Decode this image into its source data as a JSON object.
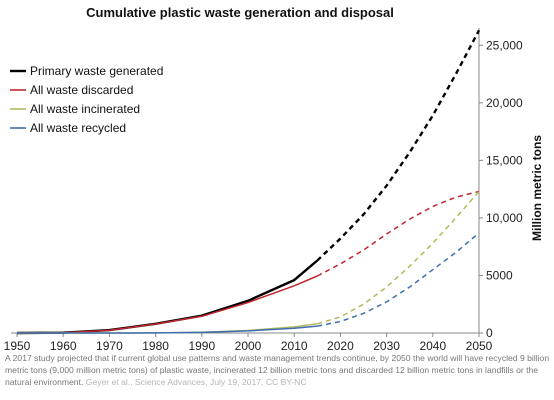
{
  "chart_data": {
    "type": "line",
    "title": "Cumulative plastic waste generation and disposal",
    "xlabel": "",
    "ylabel": "Million metric tons",
    "xlim": [
      1950,
      2050
    ],
    "ylim": [
      0,
      26500
    ],
    "x_ticks": [
      1950,
      1960,
      1970,
      1980,
      1990,
      2000,
      2010,
      2020,
      2030,
      2040,
      2050
    ],
    "y_ticks": [
      {
        "value": 0,
        "label": "0"
      },
      {
        "value": 5000,
        "label": "5000"
      },
      {
        "value": 10000,
        "label": "10,000"
      },
      {
        "value": 15000,
        "label": "15,000"
      },
      {
        "value": 20000,
        "label": "20,000"
      },
      {
        "value": 25000,
        "label": "25,000"
      }
    ],
    "y_axis_position": "right",
    "grid": false,
    "legend_position": "top-left",
    "historical_until": 2015,
    "series": [
      {
        "name": "Primary waste generated",
        "color": "#000000",
        "x": [
          1950,
          1960,
          1970,
          1980,
          1990,
          2000,
          2010,
          2015,
          2020,
          2025,
          2030,
          2035,
          2040,
          2045,
          2050
        ],
        "y": [
          0,
          30,
          250,
          800,
          1500,
          2800,
          4600,
          6300,
          8200,
          10300,
          12800,
          15700,
          18900,
          22500,
          26300
        ]
      },
      {
        "name": "All waste discarded",
        "color": "#c0272d",
        "x": [
          1950,
          1960,
          1970,
          1980,
          1990,
          2000,
          2010,
          2015,
          2020,
          2025,
          2030,
          2035,
          2040,
          2045,
          2050
        ],
        "y": [
          0,
          30,
          240,
          780,
          1450,
          2650,
          4100,
          4950,
          6000,
          7200,
          8600,
          9900,
          11000,
          11800,
          12300
        ]
      },
      {
        "name": "All waste incinerated",
        "color": "#b5b85a",
        "x": [
          1950,
          1960,
          1970,
          1980,
          1990,
          2000,
          2010,
          2015,
          2020,
          2025,
          2030,
          2035,
          2040,
          2045,
          2050
        ],
        "y": [
          0,
          0,
          0,
          10,
          60,
          220,
          530,
          800,
          1400,
          2500,
          4000,
          5800,
          7800,
          10000,
          12300
        ]
      },
      {
        "name": "All waste recycled",
        "color": "#3e6fb0",
        "x": [
          1950,
          1960,
          1970,
          1980,
          1990,
          2000,
          2010,
          2015,
          2020,
          2025,
          2030,
          2035,
          2040,
          2045,
          2050
        ],
        "y": [
          0,
          0,
          0,
          10,
          50,
          180,
          420,
          600,
          1000,
          1700,
          2700,
          4000,
          5500,
          7000,
          8700
        ]
      }
    ]
  },
  "caption": {
    "text": "A 2017 study projected that if current global use patterns and waste management trends continue, by 2050 the world will have recycled 9 billion metric tons (9,000 million metric tons) of plastic waste, incinerated 12 billion metric tons and discarded 12 billion metric tons in landfills or the natural environment.",
    "credit": "Geyer et al., Science Advances, July 19, 2017, CC BY-NC"
  }
}
